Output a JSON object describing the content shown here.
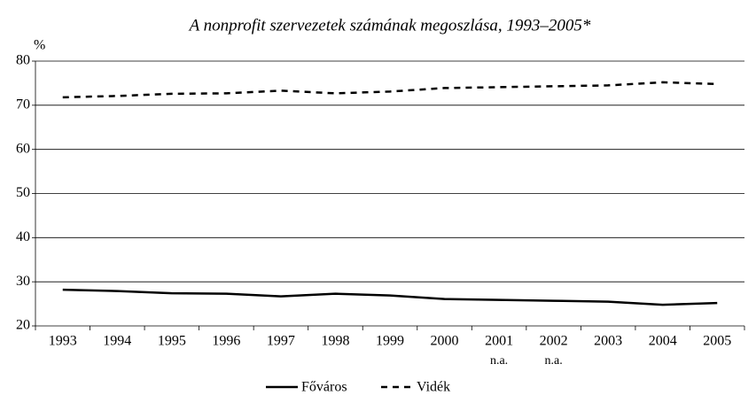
{
  "chart_data": {
    "type": "line",
    "title": "A nonprofit szervezetek számának megoszlása, 1993–2005*",
    "y_label": "%",
    "categories": [
      "1993",
      "1994",
      "1995",
      "1996",
      "1997",
      "1998",
      "1999",
      "2000",
      "2001",
      "2002",
      "2003",
      "2004",
      "2005"
    ],
    "x_sublabels": [
      null,
      null,
      null,
      null,
      null,
      null,
      null,
      null,
      "n.a.",
      "n.a.",
      null,
      null,
      null
    ],
    "series": [
      {
        "name": "Főváros",
        "color": "#000000",
        "dash": "solid",
        "values": [
          28.2,
          27.9,
          27.4,
          27.3,
          26.7,
          27.3,
          26.9,
          26.1,
          25.9,
          25.7,
          25.5,
          24.8,
          25.2
        ]
      },
      {
        "name": "Vidék",
        "color": "#000000",
        "dash": "dashed",
        "values": [
          71.8,
          72.1,
          72.6,
          72.7,
          73.3,
          72.7,
          73.1,
          73.9,
          74.1,
          74.3,
          74.5,
          75.2,
          74.8
        ]
      }
    ],
    "ylim": [
      20,
      80
    ],
    "yticks": [
      20,
      30,
      40,
      50,
      60,
      70,
      80
    ],
    "grid": true,
    "legend": "bottom"
  }
}
